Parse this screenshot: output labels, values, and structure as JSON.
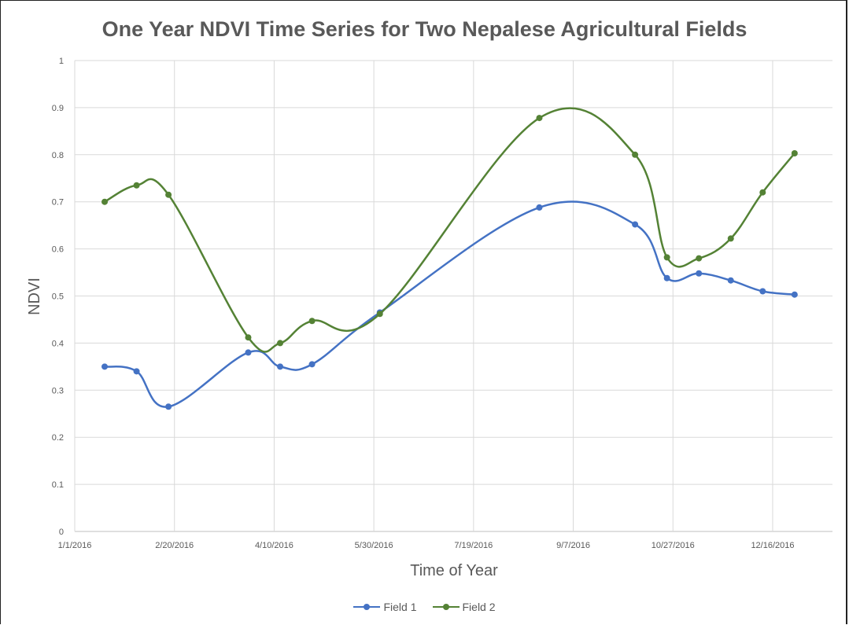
{
  "chart_data": {
    "type": "line",
    "title": "One Year NDVI Time Series for Two Nepalese Agricultural Fields",
    "xlabel": "Time of Year",
    "ylabel": "NDVI",
    "x_tick_labels": [
      "1/1/2016",
      "2/20/2016",
      "4/10/2016",
      "5/30/2016",
      "7/19/2016",
      "9/7/2016",
      "10/27/2016",
      "12/16/2016"
    ],
    "x_ticks": [
      "2016-01-01",
      "2016-02-20",
      "2016-04-10",
      "2016-05-30",
      "2016-07-19",
      "2016-09-07",
      "2016-10-27",
      "2016-12-16"
    ],
    "xlim": [
      "2016-01-01",
      "2017-01-15"
    ],
    "ylim": [
      0,
      1
    ],
    "y_tick_labels": [
      "0",
      "0.1",
      "0.2",
      "0.3",
      "0.4",
      "0.5",
      "0.6",
      "0.7",
      "0.8",
      "0.9",
      "1"
    ],
    "grid": true,
    "legend_position": "bottom",
    "series": [
      {
        "name": "Field 1",
        "color": "#4472C4",
        "points": [
          [
            "2016-01-16",
            0.35
          ],
          [
            "2016-02-01",
            0.34
          ],
          [
            "2016-02-17",
            0.265
          ],
          [
            "2016-03-28",
            0.38
          ],
          [
            "2016-04-13",
            0.35
          ],
          [
            "2016-04-29",
            0.355
          ],
          [
            "2016-06-02",
            0.465
          ],
          [
            "2016-08-21",
            0.688
          ],
          [
            "2016-10-08",
            0.652
          ],
          [
            "2016-10-24",
            0.538
          ],
          [
            "2016-11-09",
            0.548
          ],
          [
            "2016-11-25",
            0.533
          ],
          [
            "2016-12-11",
            0.51
          ],
          [
            "2016-12-27",
            0.503
          ]
        ]
      },
      {
        "name": "Field 2",
        "color": "#548235",
        "points": [
          [
            "2016-01-16",
            0.7
          ],
          [
            "2016-02-01",
            0.735
          ],
          [
            "2016-02-17",
            0.715
          ],
          [
            "2016-03-28",
            0.412
          ],
          [
            "2016-04-13",
            0.4
          ],
          [
            "2016-04-29",
            0.447
          ],
          [
            "2016-06-02",
            0.462
          ],
          [
            "2016-08-21",
            0.878
          ],
          [
            "2016-10-08",
            0.8
          ],
          [
            "2016-10-24",
            0.582
          ],
          [
            "2016-11-09",
            0.58
          ],
          [
            "2016-11-25",
            0.622
          ],
          [
            "2016-12-11",
            0.72
          ],
          [
            "2016-12-27",
            0.803
          ]
        ]
      }
    ]
  }
}
